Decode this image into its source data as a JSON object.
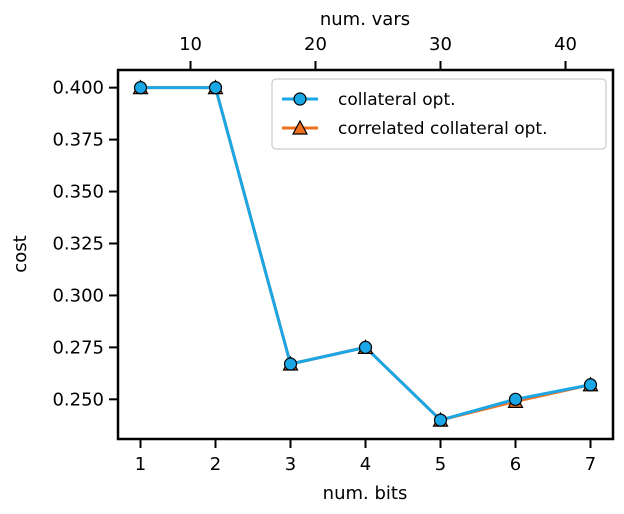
{
  "chart_data": {
    "type": "line",
    "xlabel": "num. bits",
    "x2label": "num. vars",
    "ylabel": "cost",
    "x": [
      1,
      2,
      3,
      4,
      5,
      6,
      7
    ],
    "xlim": [
      0.7,
      7.3
    ],
    "xticks": [
      1,
      2,
      3,
      4,
      5,
      6,
      7
    ],
    "x2ticks": [
      10,
      20,
      30,
      40
    ],
    "x2ticks_at_x": [
      1.667,
      3.333,
      5.0,
      6.667
    ],
    "ylim": [
      0.2309,
      0.4085
    ],
    "yticks": [
      "0.400",
      "0.375",
      "0.350",
      "0.325",
      "0.300",
      "0.275",
      "0.250"
    ],
    "ytick_values": [
      0.4,
      0.375,
      0.35,
      0.325,
      0.3,
      0.275,
      0.25
    ],
    "grid": false,
    "legend_position": "top-right",
    "series": [
      {
        "name": "collateral opt.",
        "marker": "circle",
        "line_color": "#1ba6e6",
        "marker_color": "#1ba6e6",
        "values": [
          0.4,
          0.4,
          0.267,
          0.275,
          0.24,
          0.25,
          0.257
        ]
      },
      {
        "name": "correlated collateral opt.",
        "marker": "triangle",
        "line_color": "#f07020",
        "marker_color": "#f07020",
        "values": [
          0.4,
          0.4,
          0.267,
          0.275,
          0.24,
          0.249,
          0.257
        ]
      }
    ]
  }
}
